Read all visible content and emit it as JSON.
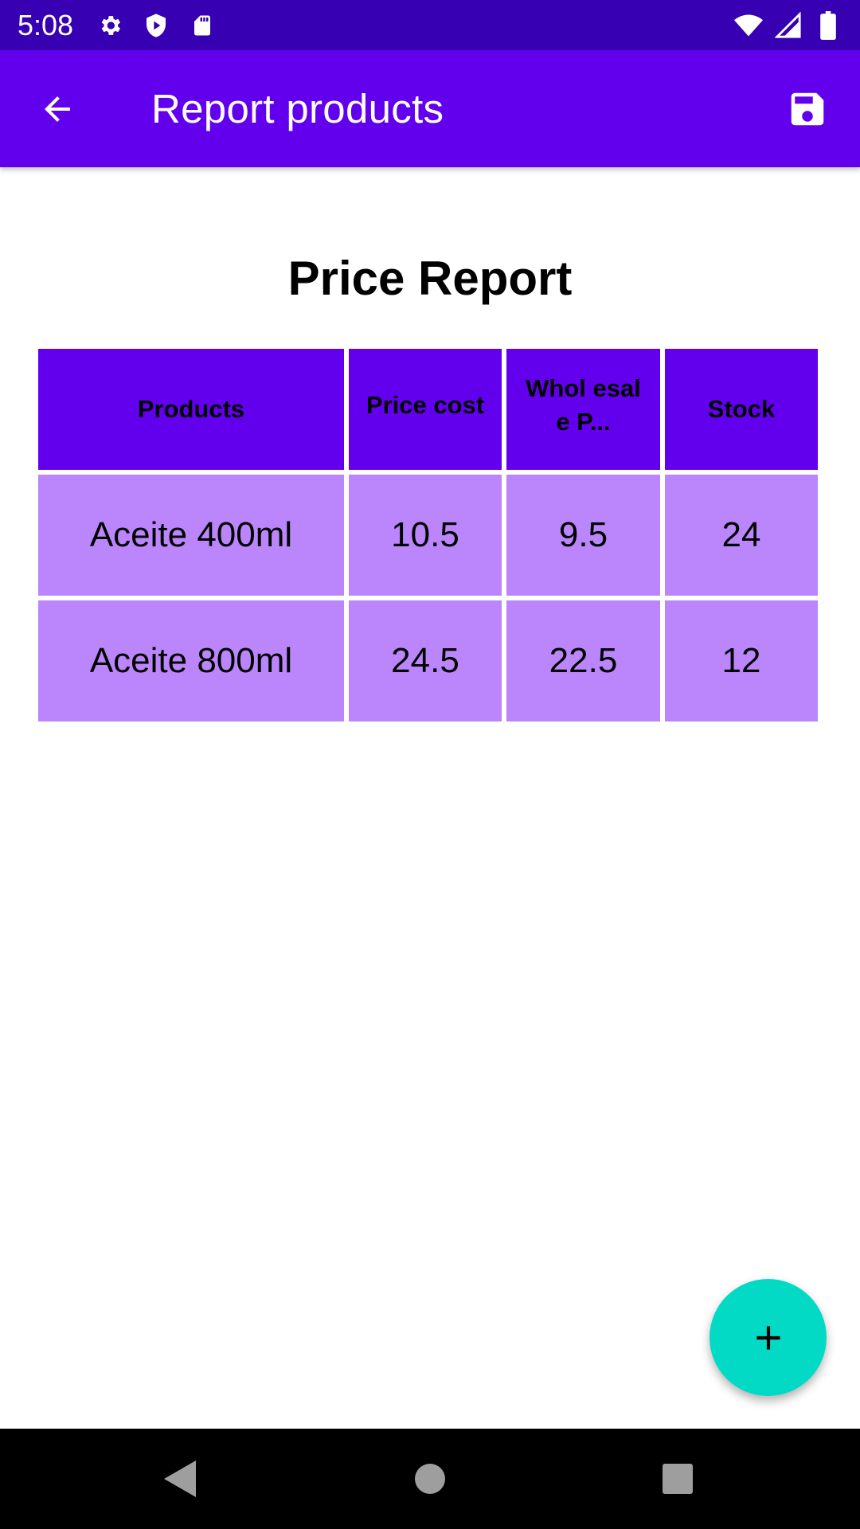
{
  "status_bar": {
    "time": "5:08",
    "left_icons": [
      "gear-icon",
      "shield-icon",
      "sd-card-icon"
    ],
    "right_icons": [
      "wifi-icon",
      "cell-signal-icon",
      "battery-icon"
    ]
  },
  "app_bar": {
    "title": "Report products",
    "back_icon": "arrow-back-icon",
    "save_icon": "save-icon"
  },
  "report": {
    "title": "Price Report",
    "columns": [
      "Products",
      "Price cost",
      "Whol esale P...",
      "Stock"
    ],
    "rows": [
      [
        "Aceite 400ml",
        "10.5",
        "9.5",
        "24"
      ],
      [
        "Aceite 800ml",
        "24.5",
        "22.5",
        "12"
      ]
    ]
  },
  "fab": {
    "icon": "plus-icon"
  },
  "nav_bar": {
    "icons": [
      "back-triangle-icon",
      "home-circle-icon",
      "recents-square-icon"
    ]
  },
  "colors": {
    "status_bar": "#3700b3",
    "primary": "#6200ee",
    "cell": "#bb86fc",
    "fab": "#03dac5"
  }
}
